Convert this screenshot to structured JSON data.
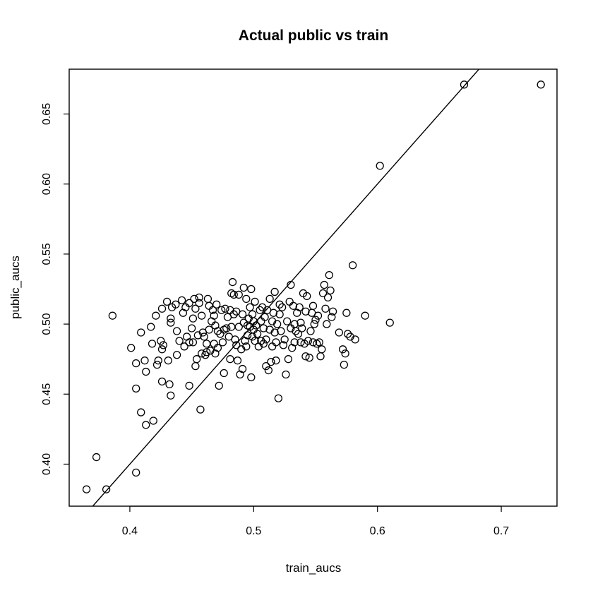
{
  "chart_data": {
    "type": "scatter",
    "title": "Actual public vs train",
    "xlabel": "train_aucs",
    "ylabel": "public_aucs",
    "xlim": [
      0.351,
      0.745
    ],
    "ylim": [
      0.37,
      0.682
    ],
    "xticks": [
      {
        "value": 0.4,
        "label": "0.4"
      },
      {
        "value": 0.5,
        "label": "0.5"
      },
      {
        "value": 0.6,
        "label": "0.6"
      },
      {
        "value": 0.7,
        "label": "0.7"
      }
    ],
    "yticks": [
      {
        "value": 0.4,
        "label": "0.40"
      },
      {
        "value": 0.45,
        "label": "0.45"
      },
      {
        "value": 0.5,
        "label": "0.50"
      },
      {
        "value": 0.55,
        "label": "0.55"
      },
      {
        "value": 0.6,
        "label": "0.60"
      },
      {
        "value": 0.65,
        "label": "0.65"
      }
    ],
    "grid": false,
    "reference_line": {
      "intercept": 0,
      "slope": 1
    },
    "points": [
      [
        0.365,
        0.382
      ],
      [
        0.381,
        0.382
      ],
      [
        0.373,
        0.405
      ],
      [
        0.386,
        0.506
      ],
      [
        0.401,
        0.483
      ],
      [
        0.405,
        0.472
      ],
      [
        0.405,
        0.454
      ],
      [
        0.405,
        0.394
      ],
      [
        0.409,
        0.437
      ],
      [
        0.409,
        0.494
      ],
      [
        0.412,
        0.474
      ],
      [
        0.413,
        0.428
      ],
      [
        0.413,
        0.466
      ],
      [
        0.417,
        0.498
      ],
      [
        0.418,
        0.486
      ],
      [
        0.419,
        0.431
      ],
      [
        0.421,
        0.506
      ],
      [
        0.422,
        0.471
      ],
      [
        0.423,
        0.474
      ],
      [
        0.425,
        0.488
      ],
      [
        0.426,
        0.482
      ],
      [
        0.426,
        0.459
      ],
      [
        0.426,
        0.511
      ],
      [
        0.427,
        0.485
      ],
      [
        0.43,
        0.516
      ],
      [
        0.431,
        0.474
      ],
      [
        0.432,
        0.457
      ],
      [
        0.433,
        0.449
      ],
      [
        0.433,
        0.501
      ],
      [
        0.433,
        0.504
      ],
      [
        0.434,
        0.512
      ],
      [
        0.437,
        0.514
      ],
      [
        0.438,
        0.495
      ],
      [
        0.438,
        0.478
      ],
      [
        0.44,
        0.488
      ],
      [
        0.442,
        0.517
      ],
      [
        0.443,
        0.508
      ],
      [
        0.444,
        0.484
      ],
      [
        0.445,
        0.512
      ],
      [
        0.446,
        0.491
      ],
      [
        0.448,
        0.487
      ],
      [
        0.448,
        0.456
      ],
      [
        0.448,
        0.515
      ],
      [
        0.45,
        0.497
      ],
      [
        0.451,
        0.504
      ],
      [
        0.451,
        0.487
      ],
      [
        0.452,
        0.518
      ],
      [
        0.453,
        0.511
      ],
      [
        0.453,
        0.47
      ],
      [
        0.454,
        0.475
      ],
      [
        0.455,
        0.492
      ],
      [
        0.456,
        0.519
      ],
      [
        0.456,
        0.515
      ],
      [
        0.457,
        0.439
      ],
      [
        0.458,
        0.506
      ],
      [
        0.458,
        0.479
      ],
      [
        0.459,
        0.494
      ],
      [
        0.46,
        0.491
      ],
      [
        0.461,
        0.478
      ],
      [
        0.462,
        0.486
      ],
      [
        0.462,
        0.48
      ],
      [
        0.463,
        0.518
      ],
      [
        0.464,
        0.513
      ],
      [
        0.464,
        0.496
      ],
      [
        0.465,
        0.481
      ],
      [
        0.466,
        0.502
      ],
      [
        0.467,
        0.51
      ],
      [
        0.468,
        0.486
      ],
      [
        0.468,
        0.506
      ],
      [
        0.469,
        0.479
      ],
      [
        0.469,
        0.499
      ],
      [
        0.47,
        0.514
      ],
      [
        0.471,
        0.495
      ],
      [
        0.471,
        0.483
      ],
      [
        0.472,
        0.456
      ],
      [
        0.473,
        0.493
      ],
      [
        0.474,
        0.51
      ],
      [
        0.475,
        0.487
      ],
      [
        0.476,
        0.465
      ],
      [
        0.476,
        0.496
      ],
      [
        0.477,
        0.511
      ],
      [
        0.478,
        0.497
      ],
      [
        0.479,
        0.505
      ],
      [
        0.48,
        0.491
      ],
      [
        0.481,
        0.51
      ],
      [
        0.481,
        0.475
      ],
      [
        0.482,
        0.522
      ],
      [
        0.482,
        0.498
      ],
      [
        0.483,
        0.53
      ],
      [
        0.484,
        0.521
      ],
      [
        0.484,
        0.507
      ],
      [
        0.485,
        0.489
      ],
      [
        0.486,
        0.509
      ],
      [
        0.486,
        0.485
      ],
      [
        0.487,
        0.474
      ],
      [
        0.488,
        0.521
      ],
      [
        0.488,
        0.498
      ],
      [
        0.489,
        0.464
      ],
      [
        0.49,
        0.482
      ],
      [
        0.491,
        0.507
      ],
      [
        0.491,
        0.468
      ],
      [
        0.492,
        0.526
      ],
      [
        0.492,
        0.501
      ],
      [
        0.493,
        0.488
      ],
      [
        0.494,
        0.518
      ],
      [
        0.494,
        0.484
      ],
      [
        0.495,
        0.492
      ],
      [
        0.495,
        0.499
      ],
      [
        0.496,
        0.504
      ],
      [
        0.497,
        0.498
      ],
      [
        0.497,
        0.512
      ],
      [
        0.498,
        0.525
      ],
      [
        0.498,
        0.462
      ],
      [
        0.499,
        0.507
      ],
      [
        0.499,
        0.491
      ],
      [
        0.5,
        0.496
      ],
      [
        0.5,
        0.502
      ],
      [
        0.501,
        0.516
      ],
      [
        0.501,
        0.488
      ],
      [
        0.502,
        0.499
      ],
      [
        0.503,
        0.493
      ],
      [
        0.504,
        0.484
      ],
      [
        0.505,
        0.51
      ],
      [
        0.506,
        0.502
      ],
      [
        0.506,
        0.488
      ],
      [
        0.507,
        0.512
      ],
      [
        0.508,
        0.486
      ],
      [
        0.508,
        0.497
      ],
      [
        0.509,
        0.505
      ],
      [
        0.51,
        0.47
      ],
      [
        0.51,
        0.489
      ],
      [
        0.511,
        0.51
      ],
      [
        0.512,
        0.467
      ],
      [
        0.513,
        0.496
      ],
      [
        0.513,
        0.518
      ],
      [
        0.514,
        0.473
      ],
      [
        0.515,
        0.502
      ],
      [
        0.515,
        0.484
      ],
      [
        0.516,
        0.508
      ],
      [
        0.517,
        0.523
      ],
      [
        0.517,
        0.494
      ],
      [
        0.518,
        0.474
      ],
      [
        0.518,
        0.487
      ],
      [
        0.519,
        0.5
      ],
      [
        0.52,
        0.447
      ],
      [
        0.521,
        0.507
      ],
      [
        0.521,
        0.514
      ],
      [
        0.522,
        0.495
      ],
      [
        0.523,
        0.512
      ],
      [
        0.524,
        0.485
      ],
      [
        0.525,
        0.489
      ],
      [
        0.526,
        0.464
      ],
      [
        0.527,
        0.502
      ],
      [
        0.528,
        0.475
      ],
      [
        0.529,
        0.516
      ],
      [
        0.53,
        0.528
      ],
      [
        0.53,
        0.497
      ],
      [
        0.531,
        0.483
      ],
      [
        0.532,
        0.513
      ],
      [
        0.533,
        0.487
      ],
      [
        0.533,
        0.5
      ],
      [
        0.534,
        0.495
      ],
      [
        0.535,
        0.508
      ],
      [
        0.536,
        0.493
      ],
      [
        0.537,
        0.512
      ],
      [
        0.538,
        0.487
      ],
      [
        0.538,
        0.501
      ],
      [
        0.539,
        0.497
      ],
      [
        0.54,
        0.522
      ],
      [
        0.541,
        0.486
      ],
      [
        0.542,
        0.509
      ],
      [
        0.542,
        0.477
      ],
      [
        0.543,
        0.52
      ],
      [
        0.544,
        0.488
      ],
      [
        0.545,
        0.476
      ],
      [
        0.546,
        0.495
      ],
      [
        0.547,
        0.508
      ],
      [
        0.548,
        0.513
      ],
      [
        0.548,
        0.487
      ],
      [
        0.549,
        0.5
      ],
      [
        0.55,
        0.503
      ],
      [
        0.551,
        0.486
      ],
      [
        0.552,
        0.506
      ],
      [
        0.553,
        0.487
      ],
      [
        0.554,
        0.477
      ],
      [
        0.555,
        0.482
      ],
      [
        0.556,
        0.522
      ],
      [
        0.557,
        0.528
      ],
      [
        0.558,
        0.511
      ],
      [
        0.559,
        0.5
      ],
      [
        0.56,
        0.519
      ],
      [
        0.561,
        0.535
      ],
      [
        0.562,
        0.524
      ],
      [
        0.563,
        0.505
      ],
      [
        0.564,
        0.509
      ],
      [
        0.569,
        0.494
      ],
      [
        0.572,
        0.482
      ],
      [
        0.573,
        0.471
      ],
      [
        0.574,
        0.479
      ],
      [
        0.575,
        0.508
      ],
      [
        0.576,
        0.493
      ],
      [
        0.578,
        0.491
      ],
      [
        0.58,
        0.542
      ],
      [
        0.582,
        0.489
      ],
      [
        0.59,
        0.506
      ],
      [
        0.602,
        0.613
      ],
      [
        0.61,
        0.501
      ],
      [
        0.67,
        0.671
      ],
      [
        0.732,
        0.671
      ]
    ]
  }
}
